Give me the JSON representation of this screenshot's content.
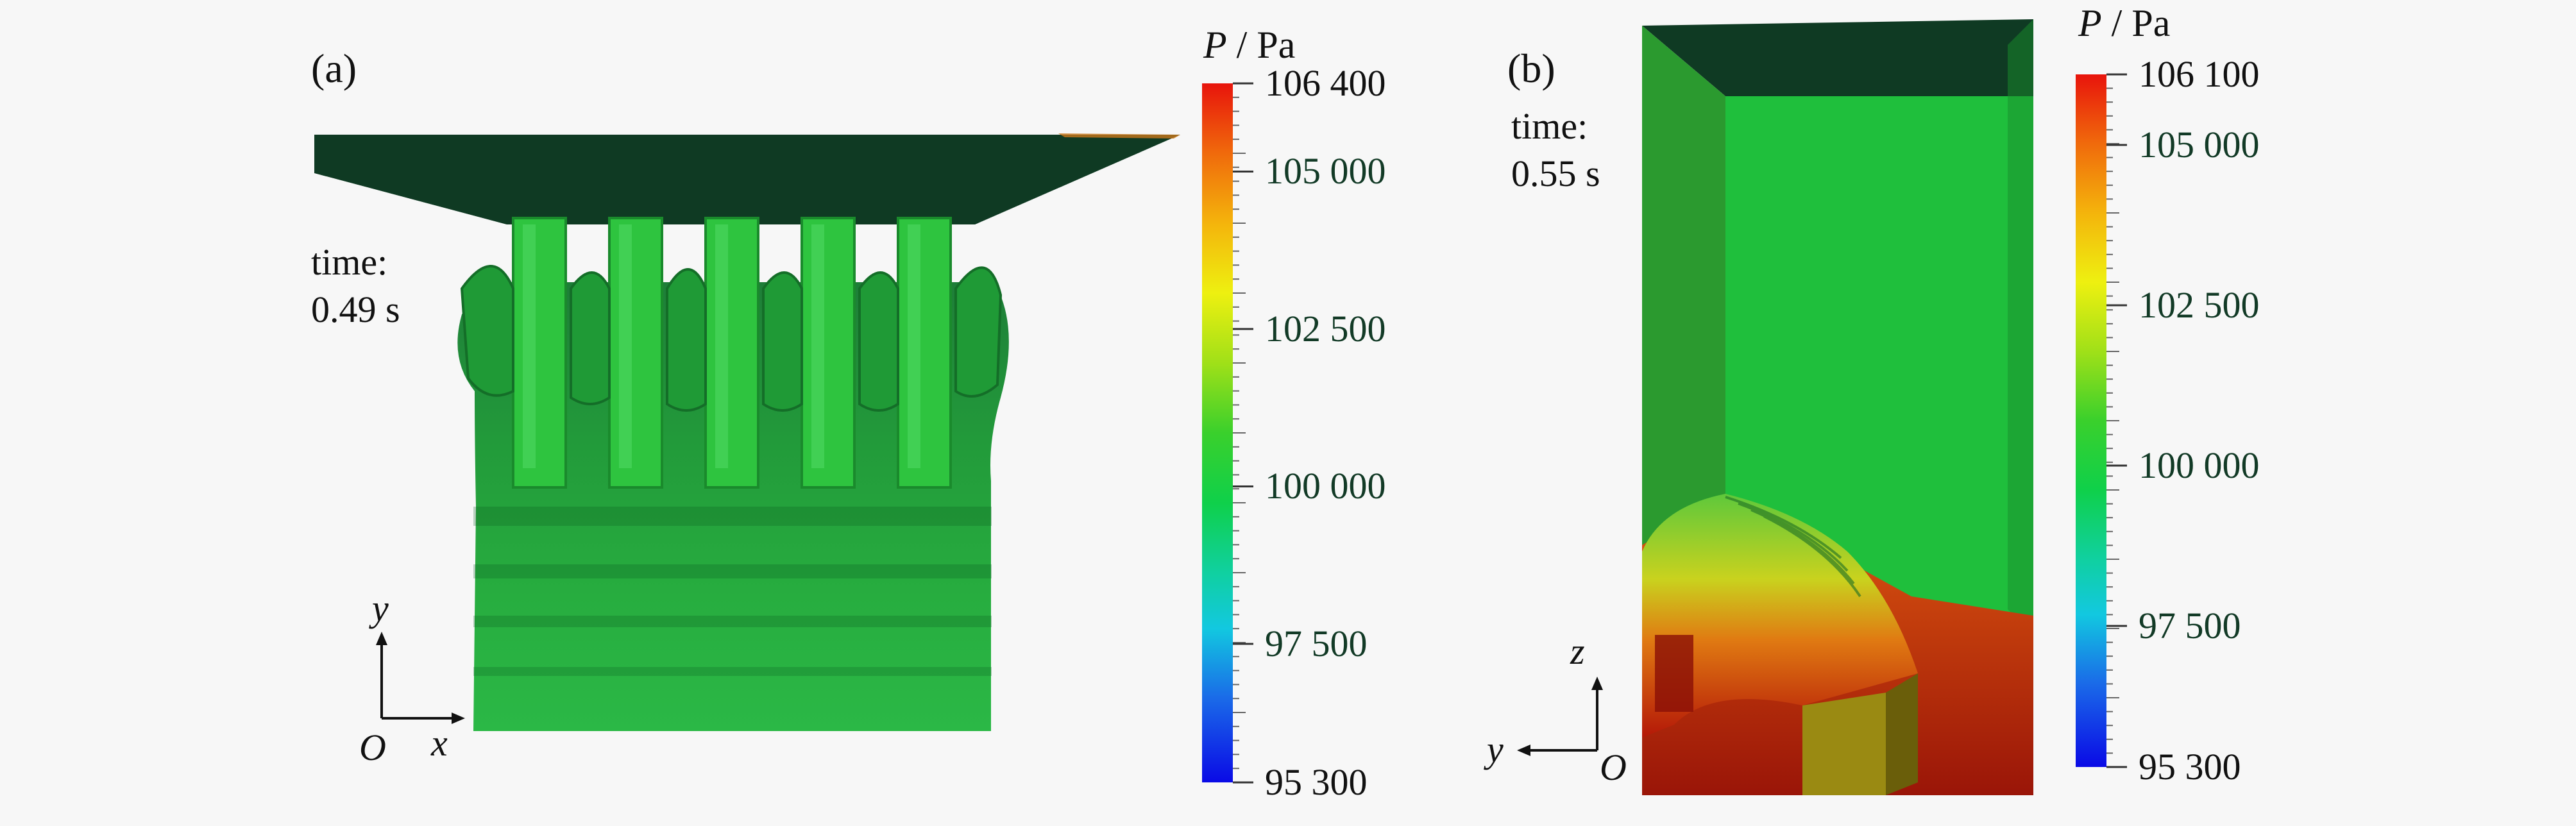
{
  "panel_a": {
    "label": "(a)",
    "time_label": "time:",
    "time_value": "0.49 s",
    "axes": {
      "vertical": "y",
      "horizontal": "x",
      "origin": "O"
    },
    "colorbar": {
      "symbol": "P",
      "unit": "/ Pa",
      "min": 95300,
      "max": 106400,
      "tick_labels": [
        "106 400",
        "105 000",
        "102 500",
        "100 000",
        "97 500",
        "95 300"
      ],
      "tick_values": [
        106400,
        105000,
        102500,
        100000,
        97500,
        95300
      ]
    }
  },
  "panel_b": {
    "label": "(b)",
    "time_label": "time:",
    "time_value": "0.55 s",
    "axes": {
      "vertical": "z",
      "horizontal": "y",
      "origin": "O"
    },
    "colorbar": {
      "symbol": "P",
      "unit": "/ Pa",
      "min": 95300,
      "max": 106100,
      "tick_labels": [
        "106 100",
        "105 000",
        "102 500",
        "100 000",
        "97 500",
        "95 300"
      ],
      "tick_values": [
        106100,
        105000,
        102500,
        100000,
        97500,
        95300
      ]
    }
  },
  "colors": {
    "lid": "#0f3a23",
    "body_green": "#22b33a",
    "high_pressure": "#e01a0a",
    "low_pressure": "#0a14e6",
    "background": "#f7f7f7"
  }
}
